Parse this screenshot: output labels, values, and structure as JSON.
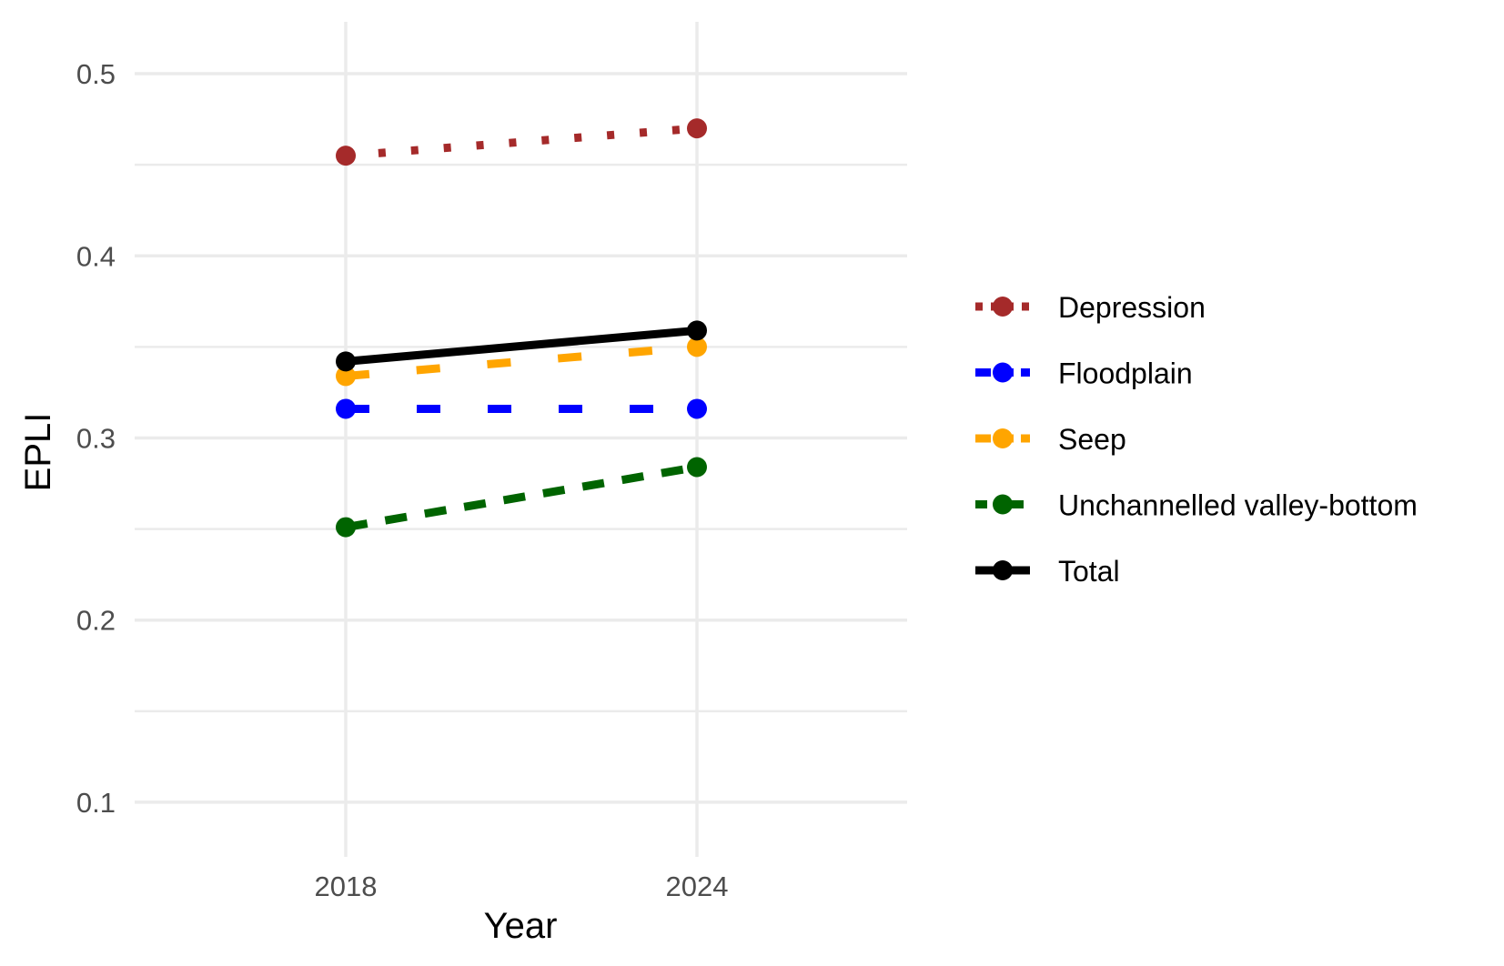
{
  "chart_data": {
    "type": "line",
    "xlabel": "Year",
    "ylabel": "EPLI",
    "categories": [
      "2018",
      "2024"
    ],
    "ylim": [
      0.07,
      0.52
    ],
    "yticks": [
      "0.1",
      "0.2",
      "0.3",
      "0.4",
      "0.5"
    ],
    "grid": true,
    "legend_position": "right",
    "series": [
      {
        "name": "Depression",
        "values": [
          0.455,
          0.47
        ],
        "color": "#a52a2a",
        "line_style": "dotted"
      },
      {
        "name": "Floodplain",
        "values": [
          0.316,
          0.316
        ],
        "color": "#0000ff",
        "line_style": "dashed"
      },
      {
        "name": "Seep",
        "values": [
          0.334,
          0.35
        ],
        "color": "#ffa500",
        "line_style": "dashed"
      },
      {
        "name": "Unchannelled valley-bottom",
        "values": [
          0.251,
          0.284
        ],
        "color": "#006400",
        "line_style": "short-dashed"
      },
      {
        "name": "Total",
        "values": [
          0.342,
          0.359
        ],
        "color": "#000000",
        "line_style": "solid"
      }
    ]
  }
}
